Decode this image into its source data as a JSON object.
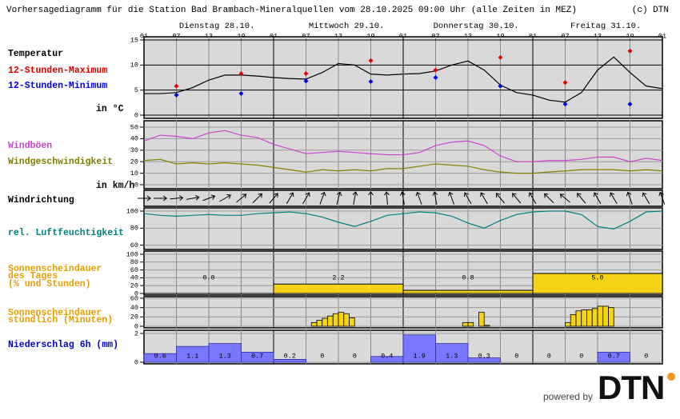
{
  "title": "Vorhersagediagramm für die Station Bad Brambach-Mineralquellen vom 28.10.2025 09:00 Uhr (alle Zeiten in MEZ)",
  "copyright": "(c) DTN",
  "days": [
    "Dienstag 28.10.",
    "Mittwoch 29.10.",
    "Donnerstag 30.10.",
    "Freitag 31.10."
  ],
  "hour_labels": [
    "01",
    "07",
    "13",
    "19"
  ],
  "powered_by": "powered by",
  "logo": "DTN",
  "chart_data": [
    {
      "type": "line",
      "unit": "in °C",
      "ylim": [
        0,
        15
      ],
      "yticks": [
        0,
        5,
        10,
        15
      ],
      "x": [
        0,
        3,
        6,
        9,
        12,
        15,
        18,
        21,
        24,
        27,
        30,
        33,
        36,
        39,
        42,
        45,
        48,
        51,
        54,
        57,
        60,
        63,
        66,
        69,
        72,
        75,
        78,
        81,
        84,
        87,
        90,
        93,
        96
      ],
      "series": [
        {
          "name": "Temperatur",
          "color": "#000000",
          "values": [
            4.3,
            4.3,
            4.5,
            5.5,
            7.0,
            8.0,
            8.0,
            7.8,
            7.5,
            7.3,
            7.2,
            8.5,
            10.3,
            10.0,
            8.2,
            8.0,
            8.2,
            8.3,
            8.8,
            10.0,
            10.8,
            9.0,
            6.0,
            4.5,
            4.0,
            3.0,
            2.6,
            4.5,
            9.0,
            11.6,
            8.5,
            5.8,
            5.3
          ]
        },
        {
          "name": "12-Stunden-Maximum",
          "color": "#e00000",
          "mark": "diamond",
          "x": [
            6,
            18,
            30,
            42,
            54,
            66,
            78,
            90
          ],
          "values": [
            5.8,
            8.3,
            8.3,
            10.9,
            9.0,
            11.5,
            6.5,
            12.8
          ]
        },
        {
          "name": "12-Stunden-Minimum",
          "color": "#0000e0",
          "mark": "diamond",
          "x": [
            6,
            18,
            30,
            42,
            54,
            66,
            78,
            90
          ],
          "values": [
            4.0,
            4.3,
            6.8,
            6.7,
            7.5,
            5.8,
            2.2,
            2.2
          ]
        }
      ]
    },
    {
      "type": "line",
      "unit": "in km/h",
      "ylim": [
        0,
        50
      ],
      "yticks": [
        0,
        10,
        20,
        30,
        40,
        50
      ],
      "x": [
        0,
        3,
        6,
        9,
        12,
        15,
        18,
        21,
        24,
        27,
        30,
        33,
        36,
        39,
        42,
        45,
        48,
        51,
        54,
        57,
        60,
        63,
        66,
        69,
        72,
        75,
        78,
        81,
        84,
        87,
        90,
        93,
        96
      ],
      "series": [
        {
          "name": "Windböen",
          "color": "#cc44cc",
          "values": [
            38,
            43,
            42,
            40,
            45,
            47,
            43,
            41,
            35,
            31,
            27,
            28,
            29,
            28,
            27,
            26,
            26,
            28,
            34,
            37,
            38,
            34,
            25,
            20,
            20,
            21,
            21,
            22,
            24,
            24,
            20,
            23,
            21
          ]
        },
        {
          "name": "Windgeschwindigkeit",
          "color": "#808000",
          "values": [
            21,
            22,
            18,
            19,
            18,
            19,
            18,
            17,
            15,
            13,
            11,
            13,
            12,
            13,
            12,
            14,
            14,
            16,
            18,
            17,
            16,
            13,
            11,
            10,
            10,
            11,
            12,
            13,
            13,
            13,
            12,
            13,
            12
          ]
        }
      ]
    },
    {
      "type": "arrows",
      "title": "Windrichtung",
      "x": [
        0,
        3,
        6,
        9,
        12,
        15,
        18,
        21,
        24,
        27,
        30,
        33,
        36,
        39,
        42,
        45,
        48,
        51,
        54,
        57,
        60,
        63,
        66,
        69,
        72,
        75,
        78,
        81,
        84,
        87,
        90,
        93,
        96
      ],
      "values": [
        90,
        90,
        85,
        80,
        70,
        60,
        50,
        45,
        40,
        30,
        30,
        20,
        15,
        10,
        0,
        355,
        350,
        340,
        350,
        340,
        330,
        330,
        320,
        320,
        330,
        315,
        310,
        320,
        330,
        330,
        340,
        330,
        340
      ]
    },
    {
      "type": "line",
      "ylim": [
        55,
        100
      ],
      "yticks": [
        60,
        80,
        100
      ],
      "x": [
        0,
        3,
        6,
        9,
        12,
        15,
        18,
        21,
        24,
        27,
        30,
        33,
        36,
        39,
        42,
        45,
        48,
        51,
        54,
        57,
        60,
        63,
        66,
        69,
        72,
        75,
        78,
        81,
        84,
        87,
        90,
        93,
        96
      ],
      "series": [
        {
          "name": "rel. Luftfeuchtigkeit",
          "color": "#008080",
          "values": [
            97,
            95,
            94,
            95,
            96,
            95,
            95,
            97,
            98,
            99,
            97,
            93,
            87,
            82,
            88,
            95,
            97,
            99,
            98,
            94,
            86,
            80,
            89,
            96,
            99,
            100,
            100,
            96,
            82,
            79,
            88,
            99,
            100
          ]
        }
      ]
    },
    {
      "type": "daily_bar",
      "title": [
        "Sonnenscheindauer",
        "des Tages",
        "(% und Stunden)"
      ],
      "color": "#f5d316",
      "ylim": [
        0,
        100
      ],
      "yticks": [
        0,
        20,
        40,
        60,
        80,
        100
      ],
      "values": [
        0,
        24,
        8,
        51
      ],
      "hours": [
        0,
        2.2,
        0.8,
        5.0
      ],
      "hours_labels": [
        "0.0",
        "2.2",
        "0.8",
        "5.0"
      ]
    },
    {
      "type": "hourly_bar",
      "title": [
        "Sonnenscheindauer",
        "stündlich (Minuten)"
      ],
      "color": "#f5d316",
      "ylim": [
        0,
        60
      ],
      "yticks": [
        0,
        20,
        40,
        60
      ],
      "x": [
        31,
        32,
        33,
        34,
        35,
        36,
        37,
        38,
        59,
        60,
        62,
        63,
        78,
        79,
        80,
        81,
        82,
        83,
        84,
        85,
        86
      ],
      "values": [
        8,
        13,
        17,
        22,
        27,
        30,
        27,
        18,
        8,
        8,
        30,
        2,
        8,
        25,
        33,
        35,
        35,
        38,
        43,
        43,
        40
      ]
    },
    {
      "type": "interval_bar",
      "title": [
        "Niederschlag 6h (mm)"
      ],
      "color": "#7878ff",
      "ylim": [
        0,
        2
      ],
      "yticks": [
        0,
        2
      ],
      "values": [
        0.6,
        1.1,
        1.3,
        0.7,
        0.2,
        0,
        0,
        0.4,
        1.9,
        1.3,
        0.3,
        0,
        0,
        0,
        0.7,
        0
      ]
    }
  ]
}
